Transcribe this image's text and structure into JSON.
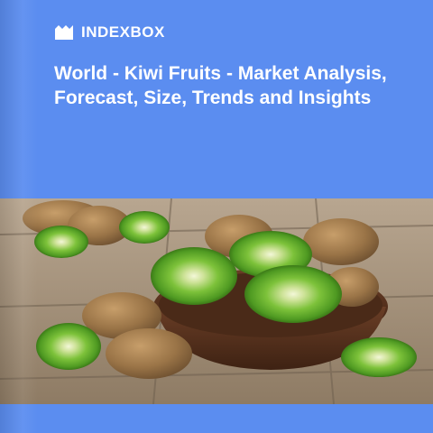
{
  "brand": {
    "name": "INDEXBOX",
    "icon": "indexbox-logo-icon"
  },
  "report": {
    "title": "World - Kiwi Fruits - Market Analysis, Forecast, Size, Trends and Insights"
  },
  "colors": {
    "cover_blue": "#5b8df0",
    "text": "#ffffff",
    "kiwi_green": "#5fb02f",
    "kiwi_skin": "#9a7447",
    "wood": "#9b8a74"
  },
  "image": {
    "subject": "kiwi-fruit-photo"
  }
}
